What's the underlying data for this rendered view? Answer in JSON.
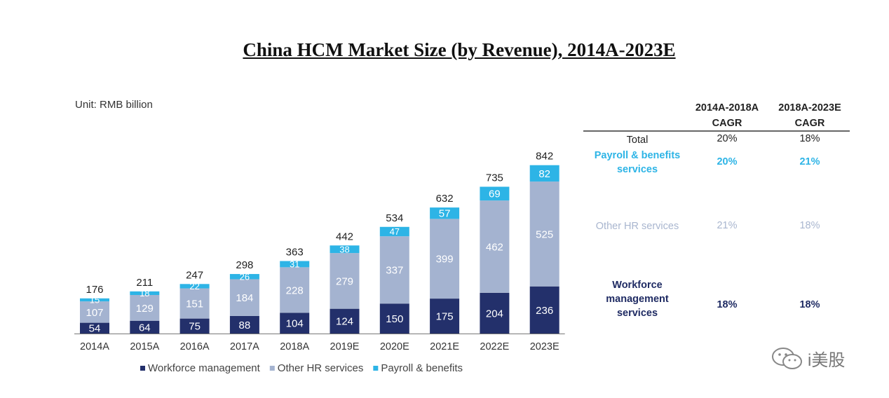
{
  "title": "China HCM Market Size (by Revenue), 2014A-2023E",
  "unit_label": "Unit: RMB billion",
  "colors": {
    "workforce": "#23306b",
    "other_hr": "#a4b3d0",
    "payroll": "#2db4e6",
    "payroll_text": "#2db4e6",
    "other_text": "#a9b6cf",
    "workforce_text": "#1f2b63"
  },
  "chart_data": {
    "type": "bar",
    "stacked": true,
    "categories": [
      "2014A",
      "2015A",
      "2016A",
      "2017A",
      "2018A",
      "2019E",
      "2020E",
      "2021E",
      "2022E",
      "2023E"
    ],
    "series": [
      {
        "name": "Workforce management",
        "values": [
          54,
          64,
          75,
          88,
          104,
          124,
          150,
          175,
          204,
          236
        ]
      },
      {
        "name": "Other HR services",
        "values": [
          107,
          129,
          151,
          184,
          228,
          279,
          337,
          399,
          462,
          525
        ]
      },
      {
        "name": "Payroll & benefits",
        "values": [
          15,
          18,
          22,
          26,
          31,
          38,
          47,
          57,
          69,
          82
        ]
      }
    ],
    "totals": [
      176,
      211,
      247,
      298,
      363,
      442,
      534,
      632,
      735,
      842
    ],
    "title": "China HCM Market Size (by Revenue), 2014A-2023E",
    "ylabel": "RMB billion",
    "ylim": [
      0,
      842
    ],
    "legend_position": "bottom",
    "grid": false
  },
  "cagr_table": {
    "col1_header": [
      "2014A-2018A",
      "CAGR"
    ],
    "col2_header": [
      "2018A-2023E",
      "CAGR"
    ],
    "rows": [
      {
        "label": "Total",
        "v1": "20%",
        "v2": "18%"
      },
      {
        "label": "Payroll & benefits services",
        "v1": "20%",
        "v2": "21%"
      },
      {
        "label": "Other HR services",
        "v1": "21%",
        "v2": "18%"
      },
      {
        "label": "Workforce management services",
        "v1": "18%",
        "v2": "18%"
      }
    ]
  },
  "watermark_text": "i美股",
  "watermark_icon": "wechat-icon"
}
